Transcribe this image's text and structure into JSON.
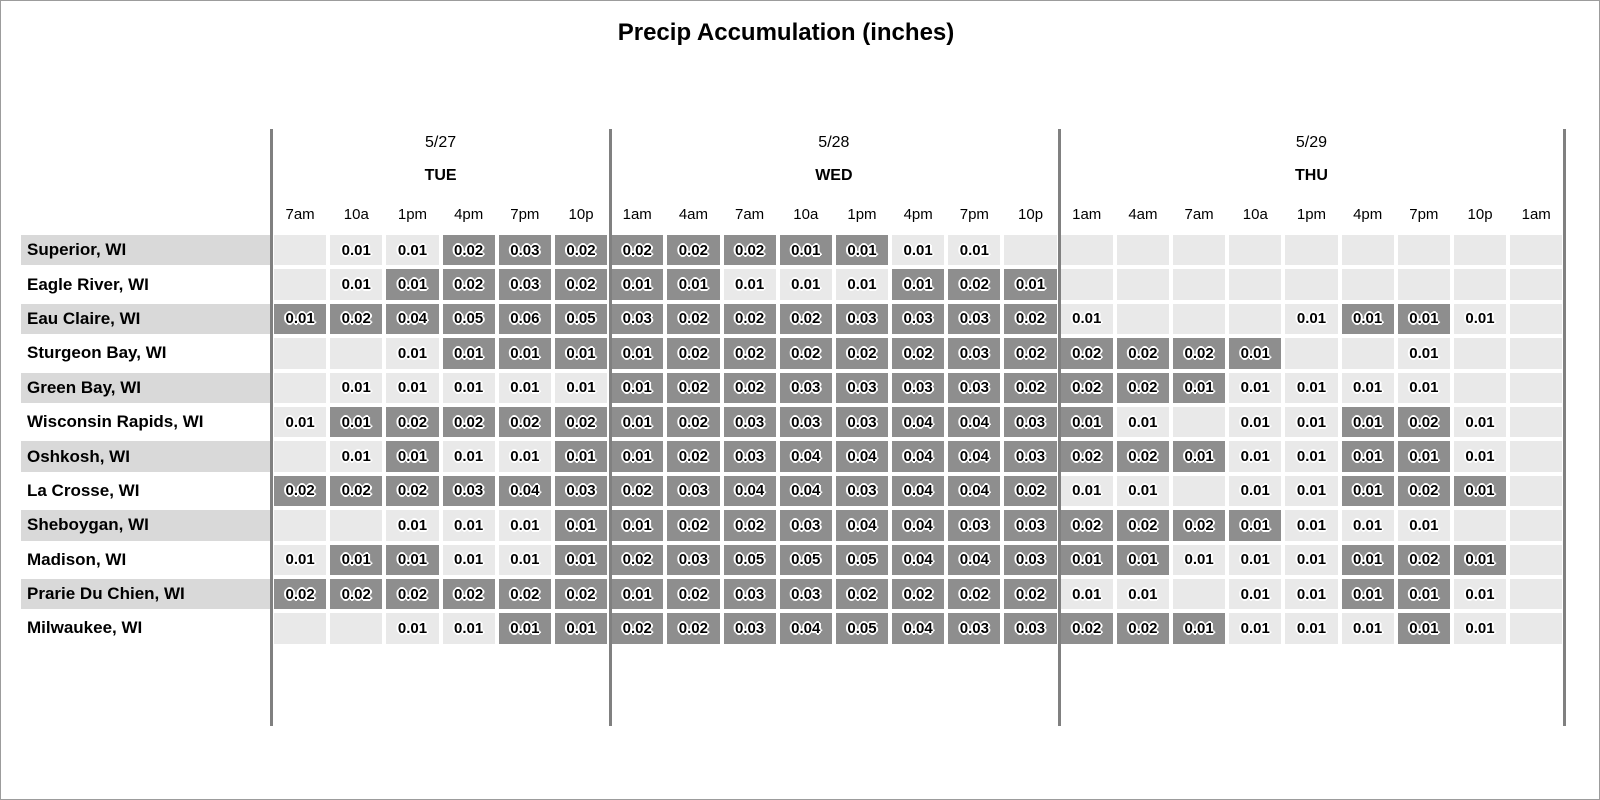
{
  "title": "Precip Accumulation (inches)",
  "colors": {
    "shaded_cell": "#8e8e8e",
    "unshaded_cell": "#e9e9e9",
    "row_stripe": "#d9d9d9",
    "row_plain": "#ffffff",
    "divider": "#808080",
    "value_text": "#000000",
    "value_halo": "#ffffff"
  },
  "chart_data": {
    "type": "heatmap",
    "title": "Precip Accumulation (inches)",
    "unit": "inches",
    "day_groups": [
      {
        "date": "5/27",
        "day": "TUE",
        "hours": [
          "7am",
          "10a",
          "1pm",
          "4pm",
          "7pm",
          "10p"
        ]
      },
      {
        "date": "5/28",
        "day": "WED",
        "hours": [
          "1am",
          "4am",
          "7am",
          "10a",
          "1pm",
          "4pm",
          "7pm",
          "10p"
        ]
      },
      {
        "date": "5/29",
        "day": "THU",
        "hours": [
          "1am",
          "4am",
          "7am",
          "10a",
          "1pm",
          "4pm",
          "7pm",
          "10p",
          "1am"
        ]
      }
    ],
    "cell_format": "[value, shaded] where shaded 1 = dark gray cell, 0 = light gray cell, empty value = blank cell",
    "rows": [
      {
        "city": "Superior, WI",
        "cells": [
          [
            "",
            0
          ],
          [
            "0.01",
            0
          ],
          [
            "0.01",
            0
          ],
          [
            "0.02",
            1
          ],
          [
            "0.03",
            1
          ],
          [
            "0.02",
            1
          ],
          [
            "0.02",
            1
          ],
          [
            "0.02",
            1
          ],
          [
            "0.02",
            1
          ],
          [
            "0.01",
            1
          ],
          [
            "0.01",
            1
          ],
          [
            "0.01",
            0
          ],
          [
            "0.01",
            0
          ],
          [
            "",
            0
          ],
          [
            "",
            0
          ],
          [
            "",
            0
          ],
          [
            "",
            0
          ],
          [
            "",
            0
          ],
          [
            "",
            0
          ],
          [
            "",
            0
          ],
          [
            "",
            0
          ],
          [
            "",
            0
          ],
          [
            "",
            0
          ]
        ]
      },
      {
        "city": "Eagle River, WI",
        "cells": [
          [
            "",
            0
          ],
          [
            "0.01",
            0
          ],
          [
            "0.01",
            1
          ],
          [
            "0.02",
            1
          ],
          [
            "0.03",
            1
          ],
          [
            "0.02",
            1
          ],
          [
            "0.01",
            1
          ],
          [
            "0.01",
            1
          ],
          [
            "0.01",
            0
          ],
          [
            "0.01",
            0
          ],
          [
            "0.01",
            0
          ],
          [
            "0.01",
            1
          ],
          [
            "0.02",
            1
          ],
          [
            "0.01",
            1
          ],
          [
            "",
            0
          ],
          [
            "",
            0
          ],
          [
            "",
            0
          ],
          [
            "",
            0
          ],
          [
            "",
            0
          ],
          [
            "",
            0
          ],
          [
            "",
            0
          ],
          [
            "",
            0
          ],
          [
            "",
            0
          ]
        ]
      },
      {
        "city": "Eau Claire, WI",
        "cells": [
          [
            "0.01",
            1
          ],
          [
            "0.02",
            1
          ],
          [
            "0.04",
            1
          ],
          [
            "0.05",
            1
          ],
          [
            "0.06",
            1
          ],
          [
            "0.05",
            1
          ],
          [
            "0.03",
            1
          ],
          [
            "0.02",
            1
          ],
          [
            "0.02",
            1
          ],
          [
            "0.02",
            1
          ],
          [
            "0.03",
            1
          ],
          [
            "0.03",
            1
          ],
          [
            "0.03",
            1
          ],
          [
            "0.02",
            1
          ],
          [
            "0.01",
            0
          ],
          [
            "",
            0
          ],
          [
            "",
            0
          ],
          [
            "",
            0
          ],
          [
            "0.01",
            0
          ],
          [
            "0.01",
            1
          ],
          [
            "0.01",
            1
          ],
          [
            "0.01",
            0
          ],
          [
            "",
            0
          ]
        ]
      },
      {
        "city": "Sturgeon Bay, WI",
        "cells": [
          [
            "",
            0
          ],
          [
            "",
            0
          ],
          [
            "0.01",
            0
          ],
          [
            "0.01",
            1
          ],
          [
            "0.01",
            1
          ],
          [
            "0.01",
            1
          ],
          [
            "0.01",
            1
          ],
          [
            "0.02",
            1
          ],
          [
            "0.02",
            1
          ],
          [
            "0.02",
            1
          ],
          [
            "0.02",
            1
          ],
          [
            "0.02",
            1
          ],
          [
            "0.03",
            1
          ],
          [
            "0.02",
            1
          ],
          [
            "0.02",
            1
          ],
          [
            "0.02",
            1
          ],
          [
            "0.02",
            1
          ],
          [
            "0.01",
            1
          ],
          [
            "",
            0
          ],
          [
            "",
            0
          ],
          [
            "0.01",
            0
          ],
          [
            "",
            0
          ],
          [
            "",
            0
          ]
        ]
      },
      {
        "city": "Green Bay, WI",
        "cells": [
          [
            "",
            0
          ],
          [
            "0.01",
            0
          ],
          [
            "0.01",
            0
          ],
          [
            "0.01",
            0
          ],
          [
            "0.01",
            0
          ],
          [
            "0.01",
            0
          ],
          [
            "0.01",
            1
          ],
          [
            "0.02",
            1
          ],
          [
            "0.02",
            1
          ],
          [
            "0.03",
            1
          ],
          [
            "0.03",
            1
          ],
          [
            "0.03",
            1
          ],
          [
            "0.03",
            1
          ],
          [
            "0.02",
            1
          ],
          [
            "0.02",
            1
          ],
          [
            "0.02",
            1
          ],
          [
            "0.01",
            1
          ],
          [
            "0.01",
            0
          ],
          [
            "0.01",
            0
          ],
          [
            "0.01",
            0
          ],
          [
            "0.01",
            0
          ],
          [
            "",
            0
          ],
          [
            "",
            0
          ]
        ]
      },
      {
        "city": "Wisconsin Rapids, WI",
        "cells": [
          [
            "0.01",
            0
          ],
          [
            "0.01",
            1
          ],
          [
            "0.02",
            1
          ],
          [
            "0.02",
            1
          ],
          [
            "0.02",
            1
          ],
          [
            "0.02",
            1
          ],
          [
            "0.01",
            1
          ],
          [
            "0.02",
            1
          ],
          [
            "0.03",
            1
          ],
          [
            "0.03",
            1
          ],
          [
            "0.03",
            1
          ],
          [
            "0.04",
            1
          ],
          [
            "0.04",
            1
          ],
          [
            "0.03",
            1
          ],
          [
            "0.01",
            1
          ],
          [
            "0.01",
            0
          ],
          [
            "",
            0
          ],
          [
            "0.01",
            0
          ],
          [
            "0.01",
            0
          ],
          [
            "0.01",
            1
          ],
          [
            "0.02",
            1
          ],
          [
            "0.01",
            0
          ],
          [
            "",
            0
          ]
        ]
      },
      {
        "city": "Oshkosh, WI",
        "cells": [
          [
            "",
            0
          ],
          [
            "0.01",
            0
          ],
          [
            "0.01",
            1
          ],
          [
            "0.01",
            0
          ],
          [
            "0.01",
            0
          ],
          [
            "0.01",
            1
          ],
          [
            "0.01",
            1
          ],
          [
            "0.02",
            1
          ],
          [
            "0.03",
            1
          ],
          [
            "0.04",
            1
          ],
          [
            "0.04",
            1
          ],
          [
            "0.04",
            1
          ],
          [
            "0.04",
            1
          ],
          [
            "0.03",
            1
          ],
          [
            "0.02",
            1
          ],
          [
            "0.02",
            1
          ],
          [
            "0.01",
            1
          ],
          [
            "0.01",
            0
          ],
          [
            "0.01",
            0
          ],
          [
            "0.01",
            1
          ],
          [
            "0.01",
            1
          ],
          [
            "0.01",
            0
          ],
          [
            "",
            0
          ]
        ]
      },
      {
        "city": "La Crosse, WI",
        "cells": [
          [
            "0.02",
            1
          ],
          [
            "0.02",
            1
          ],
          [
            "0.02",
            1
          ],
          [
            "0.03",
            1
          ],
          [
            "0.04",
            1
          ],
          [
            "0.03",
            1
          ],
          [
            "0.02",
            1
          ],
          [
            "0.03",
            1
          ],
          [
            "0.04",
            1
          ],
          [
            "0.04",
            1
          ],
          [
            "0.03",
            1
          ],
          [
            "0.04",
            1
          ],
          [
            "0.04",
            1
          ],
          [
            "0.02",
            1
          ],
          [
            "0.01",
            0
          ],
          [
            "0.01",
            0
          ],
          [
            "",
            0
          ],
          [
            "0.01",
            0
          ],
          [
            "0.01",
            0
          ],
          [
            "0.01",
            1
          ],
          [
            "0.02",
            1
          ],
          [
            "0.01",
            1
          ],
          [
            "",
            0
          ]
        ]
      },
      {
        "city": "Sheboygan, WI",
        "cells": [
          [
            "",
            0
          ],
          [
            "",
            0
          ],
          [
            "0.01",
            0
          ],
          [
            "0.01",
            0
          ],
          [
            "0.01",
            0
          ],
          [
            "0.01",
            1
          ],
          [
            "0.01",
            1
          ],
          [
            "0.02",
            1
          ],
          [
            "0.02",
            1
          ],
          [
            "0.03",
            1
          ],
          [
            "0.04",
            1
          ],
          [
            "0.04",
            1
          ],
          [
            "0.03",
            1
          ],
          [
            "0.03",
            1
          ],
          [
            "0.02",
            1
          ],
          [
            "0.02",
            1
          ],
          [
            "0.02",
            1
          ],
          [
            "0.01",
            1
          ],
          [
            "0.01",
            0
          ],
          [
            "0.01",
            0
          ],
          [
            "0.01",
            0
          ],
          [
            "",
            0
          ],
          [
            "",
            0
          ]
        ]
      },
      {
        "city": "Madison, WI",
        "cells": [
          [
            "0.01",
            0
          ],
          [
            "0.01",
            1
          ],
          [
            "0.01",
            1
          ],
          [
            "0.01",
            0
          ],
          [
            "0.01",
            0
          ],
          [
            "0.01",
            1
          ],
          [
            "0.02",
            1
          ],
          [
            "0.03",
            1
          ],
          [
            "0.05",
            1
          ],
          [
            "0.05",
            1
          ],
          [
            "0.05",
            1
          ],
          [
            "0.04",
            1
          ],
          [
            "0.04",
            1
          ],
          [
            "0.03",
            1
          ],
          [
            "0.01",
            1
          ],
          [
            "0.01",
            1
          ],
          [
            "0.01",
            0
          ],
          [
            "0.01",
            0
          ],
          [
            "0.01",
            0
          ],
          [
            "0.01",
            1
          ],
          [
            "0.02",
            1
          ],
          [
            "0.01",
            1
          ],
          [
            "",
            0
          ]
        ]
      },
      {
        "city": "Prarie Du Chien, WI",
        "cells": [
          [
            "0.02",
            1
          ],
          [
            "0.02",
            1
          ],
          [
            "0.02",
            1
          ],
          [
            "0.02",
            1
          ],
          [
            "0.02",
            1
          ],
          [
            "0.02",
            1
          ],
          [
            "0.01",
            1
          ],
          [
            "0.02",
            1
          ],
          [
            "0.03",
            1
          ],
          [
            "0.03",
            1
          ],
          [
            "0.02",
            1
          ],
          [
            "0.02",
            1
          ],
          [
            "0.02",
            1
          ],
          [
            "0.02",
            1
          ],
          [
            "0.01",
            0
          ],
          [
            "0.01",
            0
          ],
          [
            "",
            0
          ],
          [
            "0.01",
            0
          ],
          [
            "0.01",
            0
          ],
          [
            "0.01",
            1
          ],
          [
            "0.01",
            1
          ],
          [
            "0.01",
            0
          ],
          [
            "",
            0
          ]
        ]
      },
      {
        "city": "Milwaukee, WI",
        "cells": [
          [
            "",
            0
          ],
          [
            "",
            0
          ],
          [
            "0.01",
            0
          ],
          [
            "0.01",
            0
          ],
          [
            "0.01",
            1
          ],
          [
            "0.01",
            1
          ],
          [
            "0.02",
            1
          ],
          [
            "0.02",
            1
          ],
          [
            "0.03",
            1
          ],
          [
            "0.04",
            1
          ],
          [
            "0.05",
            1
          ],
          [
            "0.04",
            1
          ],
          [
            "0.03",
            1
          ],
          [
            "0.03",
            1
          ],
          [
            "0.02",
            1
          ],
          [
            "0.02",
            1
          ],
          [
            "0.01",
            1
          ],
          [
            "0.01",
            0
          ],
          [
            "0.01",
            0
          ],
          [
            "0.01",
            0
          ],
          [
            "0.01",
            1
          ],
          [
            "0.01",
            0
          ],
          [
            "",
            0
          ]
        ]
      }
    ]
  }
}
